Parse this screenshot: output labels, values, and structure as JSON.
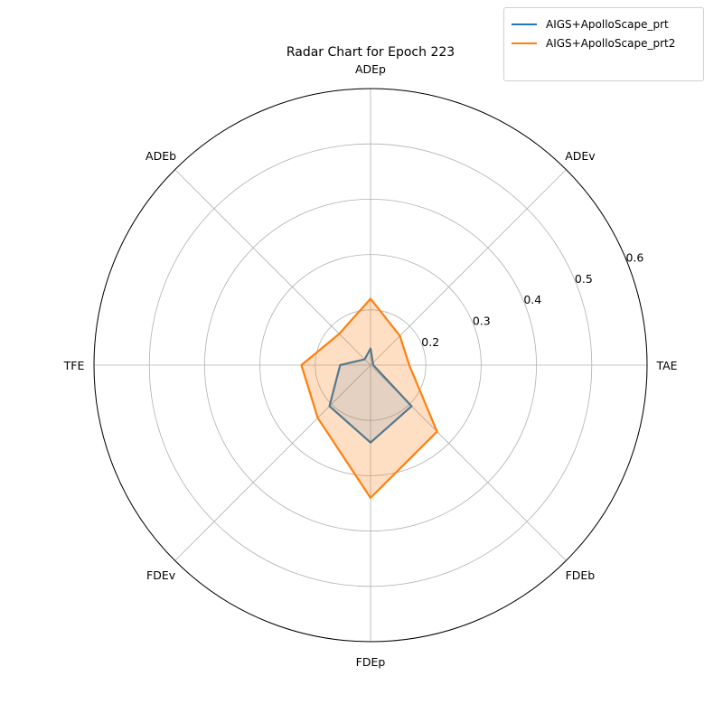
{
  "chart_data": {
    "type": "radar",
    "title": "Radar Chart for Epoch 223",
    "axes": [
      "TAE",
      "ADEv",
      "ADEp",
      "ADEb",
      "TFE",
      "FDEv",
      "FDEp",
      "FDEb"
    ],
    "rlim": [
      0.1,
      0.6
    ],
    "r_ticks": [
      0.2,
      0.3,
      0.4,
      0.5,
      0.6
    ],
    "r_tick_labels": [
      "0.2",
      "0.3",
      "0.4",
      "0.5",
      "0.6"
    ],
    "grid": true,
    "legend_position": "top-right",
    "series": [
      {
        "name": "AIGS+ApolloScape_prt",
        "color": "#1f77b4",
        "fill": false,
        "values": [
          0.105,
          0.106,
          0.13,
          0.115,
          0.155,
          0.205,
          0.24,
          0.205
        ]
      },
      {
        "name": "AIGS+ApolloScape_prt2",
        "color": "#ff7f0e",
        "fill": true,
        "values": [
          0.17,
          0.175,
          0.22,
          0.18,
          0.225,
          0.235,
          0.34,
          0.27
        ]
      }
    ]
  }
}
